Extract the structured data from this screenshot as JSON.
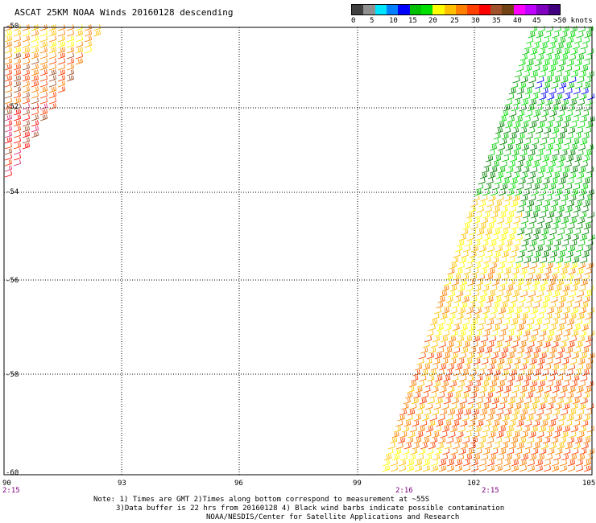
{
  "title": "ASCAT 25KM NOAA Winds 20160128 descending",
  "legend": {
    "colors": [
      "#404040",
      "#909090",
      "#00e5ff",
      "#0080ff",
      "#0000ff",
      "#00c000",
      "#00e000",
      "#ffff00",
      "#ffc000",
      "#ff8000",
      "#ff4000",
      "#ff0000",
      "#a0522d",
      "#704214",
      "#ff00ff",
      "#c000ff",
      "#8000c0",
      "#400080"
    ],
    "labels": [
      "0",
      "5",
      "10",
      "15",
      "20",
      "25",
      "30",
      "35",
      "40",
      "45",
      ">50 knots"
    ]
  },
  "map": {
    "lat_labels": [
      "-50",
      "-52",
      "-54",
      "-56",
      "-58",
      "-60"
    ],
    "lon_labels": [
      "90",
      "93",
      "96",
      "99",
      "102",
      "105"
    ],
    "time_labels": [
      "2:15",
      "2:16",
      "2:15"
    ]
  },
  "notes": [
    "Note: 1) Times are GMT 2)Times along bottom correspond to measurement at ~55S",
    "3)Data buffer is 22 hrs from 20160128 4) Black wind barbs indicate possible contamination",
    "NOAA/NESDIS/Center for Satellite Applications and Research"
  ]
}
